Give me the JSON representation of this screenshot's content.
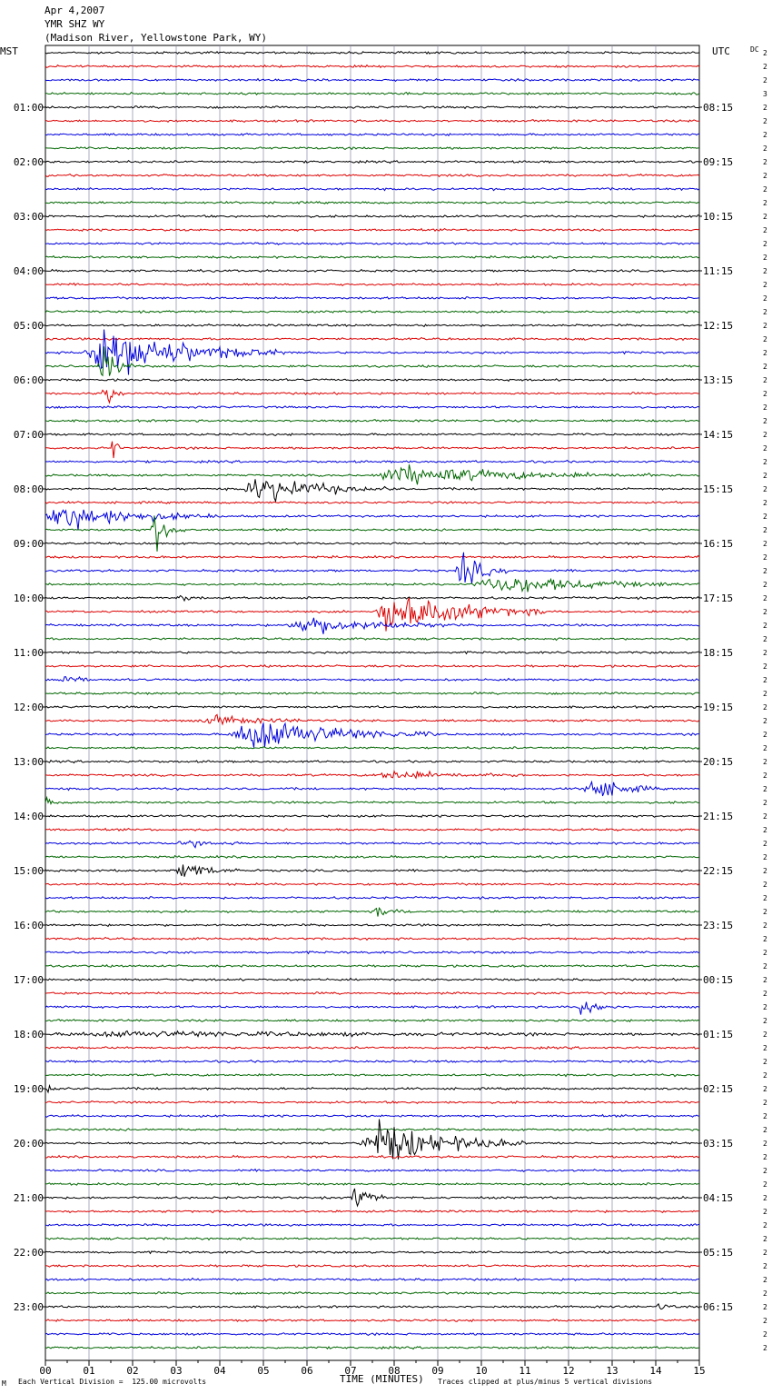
{
  "header": {
    "date": "Apr 4,2007",
    "station": "YMR SHZ WY",
    "location": "(Madison River, Yellowstone Park, WY)"
  },
  "left_axis_title": "MST",
  "right_axis_title": "UTC",
  "dc_label": "DC",
  "footer": {
    "left_marker": "M",
    "scale_note": "Each Vertical Division =  125.00 microvolts",
    "x_title": "TIME (MINUTES)",
    "clip_note": "Traces clipped at plus/minus 5 vertical divisions"
  },
  "colors": {
    "black": "#000000",
    "red": "#dd0000",
    "blue": "#0000dd",
    "green": "#006600",
    "grid": "#8888aa"
  },
  "chart_data": {
    "type": "line",
    "title": "",
    "xlabel": "TIME (MINUTES)",
    "xlim": [
      0,
      15
    ],
    "x_ticks": [
      "00",
      "01",
      "02",
      "03",
      "04",
      "05",
      "06",
      "07",
      "08",
      "09",
      "10",
      "11",
      "12",
      "13",
      "14",
      "15"
    ],
    "trace_count": 96,
    "trace_minutes": 15,
    "color_cycle": [
      "black",
      "red",
      "blue",
      "green"
    ],
    "left_hour_labels": [
      "01:00",
      "02:00",
      "03:00",
      "04:00",
      "05:00",
      "06:00",
      "07:00",
      "08:00",
      "09:00",
      "10:00",
      "11:00",
      "12:00",
      "13:00",
      "14:00",
      "15:00",
      "16:00",
      "17:00",
      "18:00",
      "19:00",
      "20:00",
      "21:00",
      "22:00",
      "23:00"
    ],
    "right_hour_labels": [
      "08:15",
      "09:15",
      "10:15",
      "11:15",
      "12:15",
      "13:15",
      "14:15",
      "15:15",
      "16:15",
      "17:15",
      "18:15",
      "19:15",
      "20:15",
      "21:15",
      "22:15",
      "23:15",
      "00:15",
      "01:15",
      "02:15",
      "03:15",
      "04:15",
      "05:15",
      "06:15"
    ],
    "dc_offsets": [
      "2",
      "2",
      "2",
      "3",
      "2",
      "2",
      "2",
      "2",
      "2",
      "2",
      "2",
      "2",
      "2",
      "2",
      "2",
      "2",
      "2",
      "2",
      "2",
      "2",
      "2",
      "2",
      "2",
      "2",
      "2",
      "2",
      "2",
      "2",
      "2",
      "2",
      "2",
      "2",
      "2",
      "2",
      "2",
      "2",
      "2",
      "2",
      "2",
      "2",
      "2",
      "2",
      "2",
      "2",
      "2",
      "2",
      "2",
      "2",
      "2",
      "2",
      "2",
      "2",
      "2",
      "2",
      "2",
      "2",
      "2",
      "2",
      "2",
      "2",
      "2",
      "2",
      "2",
      "2",
      "2",
      "2",
      "2",
      "2",
      "2",
      "2",
      "2",
      "2",
      "2",
      "2",
      "2",
      "2",
      "2",
      "2",
      "2",
      "2",
      "2",
      "2",
      "2",
      "2",
      "2",
      "2",
      "2",
      "2",
      "2",
      "2",
      "2",
      "2",
      "2",
      "2",
      "2",
      "2"
    ],
    "events": [
      {
        "trace": 22,
        "start": 0.8,
        "end": 5.5,
        "amp": 6
      },
      {
        "trace": 23,
        "start": 1.2,
        "end": 2.0,
        "amp": 5
      },
      {
        "trace": 25,
        "start": 1.3,
        "end": 1.8,
        "amp": 4
      },
      {
        "trace": 29,
        "start": 1.5,
        "end": 1.8,
        "amp": 3
      },
      {
        "trace": 31,
        "start": 7.4,
        "end": 14.0,
        "amp": 2
      },
      {
        "trace": 32,
        "start": 4.5,
        "end": 8.0,
        "amp": 3
      },
      {
        "trace": 34,
        "start": 0.0,
        "end": 4.0,
        "amp": 3
      },
      {
        "trace": 35,
        "start": 2.4,
        "end": 3.2,
        "amp": 5
      },
      {
        "trace": 38,
        "start": 9.4,
        "end": 10.6,
        "amp": 4
      },
      {
        "trace": 39,
        "start": 9.8,
        "end": 15.0,
        "amp": 2
      },
      {
        "trace": 40,
        "start": 3.0,
        "end": 3.6,
        "amp": 1
      },
      {
        "trace": 41,
        "start": 7.5,
        "end": 11.5,
        "amp": 5
      },
      {
        "trace": 42,
        "start": 5.5,
        "end": 9.5,
        "amp": 2
      },
      {
        "trace": 46,
        "start": 0.3,
        "end": 1.0,
        "amp": 2
      },
      {
        "trace": 49,
        "start": 3.5,
        "end": 6.5,
        "amp": 1
      },
      {
        "trace": 50,
        "start": 4.2,
        "end": 9.0,
        "amp": 4
      },
      {
        "trace": 53,
        "start": 7.5,
        "end": 11.0,
        "amp": 1
      },
      {
        "trace": 54,
        "start": 12.3,
        "end": 14.0,
        "amp": 3
      },
      {
        "trace": 55,
        "start": 0.0,
        "end": 0.3,
        "amp": 1
      },
      {
        "trace": 58,
        "start": 3.0,
        "end": 4.5,
        "amp": 1
      },
      {
        "trace": 60,
        "start": 3.0,
        "end": 4.5,
        "amp": 2
      },
      {
        "trace": 63,
        "start": 7.5,
        "end": 8.5,
        "amp": 1
      },
      {
        "trace": 72,
        "start": 0.0,
        "end": 15.0,
        "amp": 0.6
      },
      {
        "trace": 70,
        "start": 12.2,
        "end": 13.2,
        "amp": 2
      },
      {
        "trace": 76,
        "start": 0.0,
        "end": 0.5,
        "amp": 1
      },
      {
        "trace": 80,
        "start": 7.2,
        "end": 11.0,
        "amp": 5
      },
      {
        "trace": 84,
        "start": 7.0,
        "end": 7.8,
        "amp": 3
      },
      {
        "trace": 92,
        "start": 14.0,
        "end": 14.5,
        "amp": 1
      }
    ]
  }
}
